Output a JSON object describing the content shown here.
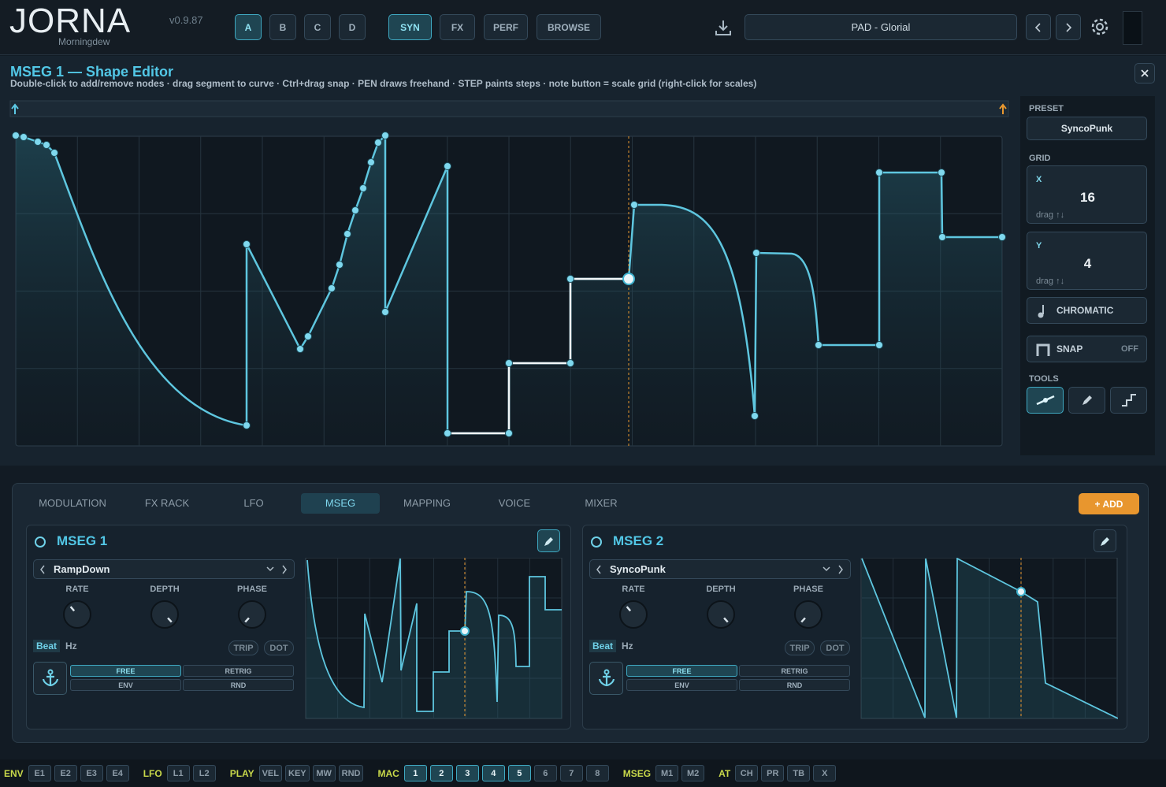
{
  "header": {
    "logo": "JORNA",
    "version": "v0.9.87",
    "subtitle": "Morningdew",
    "slots": [
      "A",
      "B",
      "C",
      "D"
    ],
    "modes": [
      "SYN",
      "FX",
      "PERF",
      "BROWSE"
    ],
    "preset": "PAD - Glorial"
  },
  "editor": {
    "title": "MSEG 1 — Shape Editor",
    "hint": "Double-click to add/remove nodes · drag segment to curve · Ctrl+drag snap · PEN draws freehand · STEP paints steps · note button = scale grid (right-click for scales)",
    "side": {
      "preset_label": "PRESET",
      "preset": "SyncoPunk",
      "grid_label": "GRID",
      "x_label": "X",
      "x_value": 16,
      "x_hint": "drag ↑↓",
      "y_label": "Y",
      "y_value": 4,
      "y_hint": "drag ↑↓",
      "chromatic": "CHROMATIC",
      "snap": "SNAP",
      "snap_state": "OFF",
      "tools_label": "TOOLS"
    }
  },
  "tabs": [
    "MODULATION",
    "FX RACK",
    "LFO",
    "MSEG",
    "MAPPING",
    "VOICE",
    "MIXER"
  ],
  "add": "+ ADD",
  "cards": [
    {
      "name": "MSEG 1",
      "preset": "RampDown",
      "params": [
        "RATE",
        "DEPTH",
        "PHASE"
      ],
      "units": [
        "Beat",
        "Hz"
      ],
      "modifiers": [
        "TRIP",
        "DOT"
      ],
      "modes": [
        "FREE",
        "RETRIG",
        "ENV",
        "RND"
      ]
    },
    {
      "name": "MSEG 2",
      "preset": "SyncoPunk",
      "params": [
        "RATE",
        "DEPTH",
        "PHASE"
      ],
      "units": [
        "Beat",
        "Hz"
      ],
      "modifiers": [
        "TRIP",
        "DOT"
      ],
      "modes": [
        "FREE",
        "RETRIG",
        "ENV",
        "RND"
      ]
    }
  ],
  "footer": [
    {
      "label": "ENV",
      "buttons": [
        "E1",
        "E2",
        "E3",
        "E4"
      ]
    },
    {
      "label": "LFO",
      "buttons": [
        "L1",
        "L2"
      ]
    },
    {
      "label": "PLAY",
      "buttons": [
        "VEL",
        "KEY",
        "MW",
        "RND"
      ]
    },
    {
      "label": "MAC",
      "buttons": [
        "1",
        "2",
        "3",
        "4",
        "5",
        "6",
        "7",
        "8"
      ]
    },
    {
      "label": "MSEG",
      "buttons": [
        "M1",
        "M2"
      ]
    },
    {
      "label": "AT",
      "buttons": [
        "CH",
        "PR",
        "TB",
        "X"
      ]
    }
  ]
}
